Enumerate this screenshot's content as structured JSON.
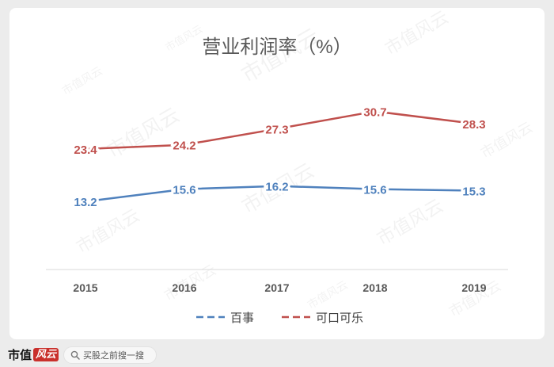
{
  "chart_data": {
    "type": "line",
    "title": "营业利润率（%）",
    "categories": [
      "2015",
      "2016",
      "2017",
      "2018",
      "2019"
    ],
    "series": [
      {
        "name": "百事",
        "values": [
          13.2,
          15.6,
          16.2,
          15.6,
          15.3
        ],
        "color": "#4f81bd"
      },
      {
        "name": "可口可乐",
        "values": [
          23.4,
          24.2,
          27.3,
          30.7,
          28.3
        ],
        "color": "#c0504d"
      }
    ],
    "xlabel": "",
    "ylabel": "",
    "ylim": [
      0,
      40
    ],
    "grid": false,
    "legend": "bottom",
    "data_labels": true
  },
  "watermark": "市值风云",
  "footer": {
    "brand_text": "市值",
    "brand_mark": "风云",
    "search_placeholder": "买股之前搜一搜"
  }
}
